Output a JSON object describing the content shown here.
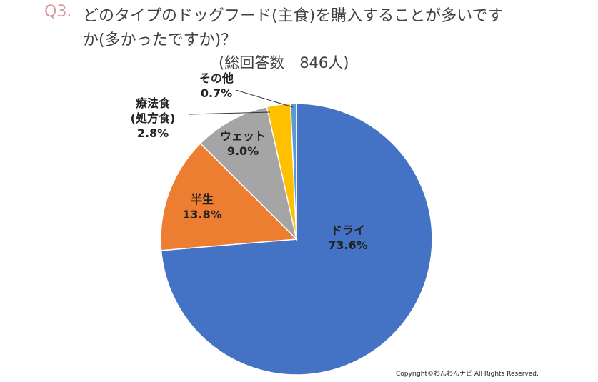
{
  "title": {
    "prefix": "Q3.",
    "line1": "どのタイプのドッグフード(主食)を購入することが多いです",
    "line2": "か(多かったですか)？",
    "subtitle": "(総回答数　846人)"
  },
  "copyright": "Copyright©わんわんナビ All Rights Reserved.",
  "chart_data": {
    "type": "pie",
    "title": "どのタイプのドッグフード(主食)を購入することが多いですか(多かったですか)？",
    "subtitle": "(総回答数　846人)",
    "start": "12 o'clock, clockwise",
    "slices": [
      {
        "name": "ドライ",
        "name2": "",
        "value": 73.6,
        "label": "73.6%",
        "color": "#4472c4"
      },
      {
        "name": "半生",
        "name2": "",
        "value": 13.8,
        "label": "13.8%",
        "color": "#ed7d31"
      },
      {
        "name": "ウェット",
        "name2": "",
        "value": 9.0,
        "label": "9.0%",
        "color": "#a5a5a5"
      },
      {
        "name": "療法食",
        "name2": "(処方食)",
        "value": 2.8,
        "label": "2.8%",
        "color": "#ffc000"
      },
      {
        "name": "その他",
        "name2": "",
        "value": 0.7,
        "label": "0.7%",
        "color": "#5b9bd5"
      }
    ]
  }
}
